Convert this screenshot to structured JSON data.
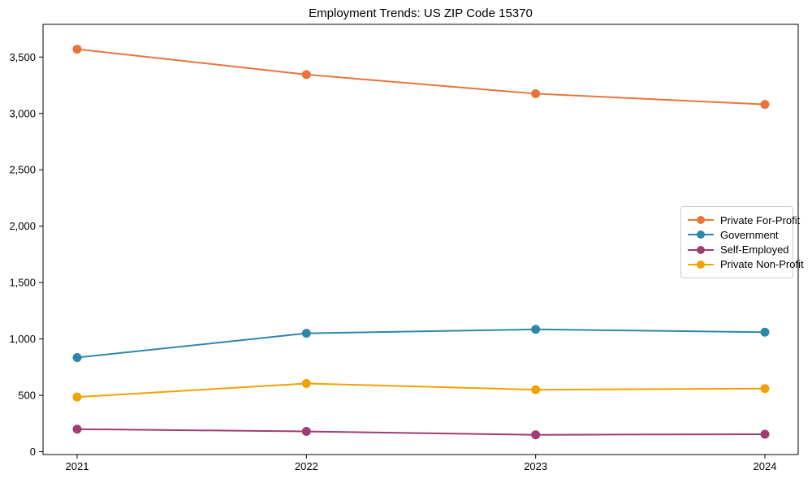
{
  "title": "Employment Trends: US ZIP Code 15370",
  "chart_data": {
    "type": "line",
    "x": [
      "2021",
      "2022",
      "2023",
      "2024"
    ],
    "series": [
      {
        "name": "Private For-Profit",
        "color": "#E8743B",
        "values": [
          3570,
          3345,
          3175,
          3080
        ]
      },
      {
        "name": "Government",
        "color": "#2E86AB",
        "values": [
          835,
          1050,
          1085,
          1060
        ]
      },
      {
        "name": "Self-Employed",
        "color": "#A23B72",
        "values": [
          200,
          180,
          150,
          155
        ]
      },
      {
        "name": "Private Non-Profit",
        "color": "#F2A104",
        "values": [
          485,
          605,
          550,
          560
        ]
      }
    ],
    "title": "Employment Trends: US ZIP Code 15370",
    "xlabel": "",
    "ylabel": "",
    "ylim": [
      -25,
      3790
    ],
    "yticks": [
      0,
      500,
      1000,
      1500,
      2000,
      2500,
      3000,
      3500
    ],
    "ytick_labels": [
      "0",
      "500",
      "1,000",
      "1,500",
      "2,000",
      "2,500",
      "3,000",
      "3,500"
    ],
    "grid": false,
    "legend_position": "center-right",
    "marker": "circle",
    "axis_color": "#000000"
  }
}
